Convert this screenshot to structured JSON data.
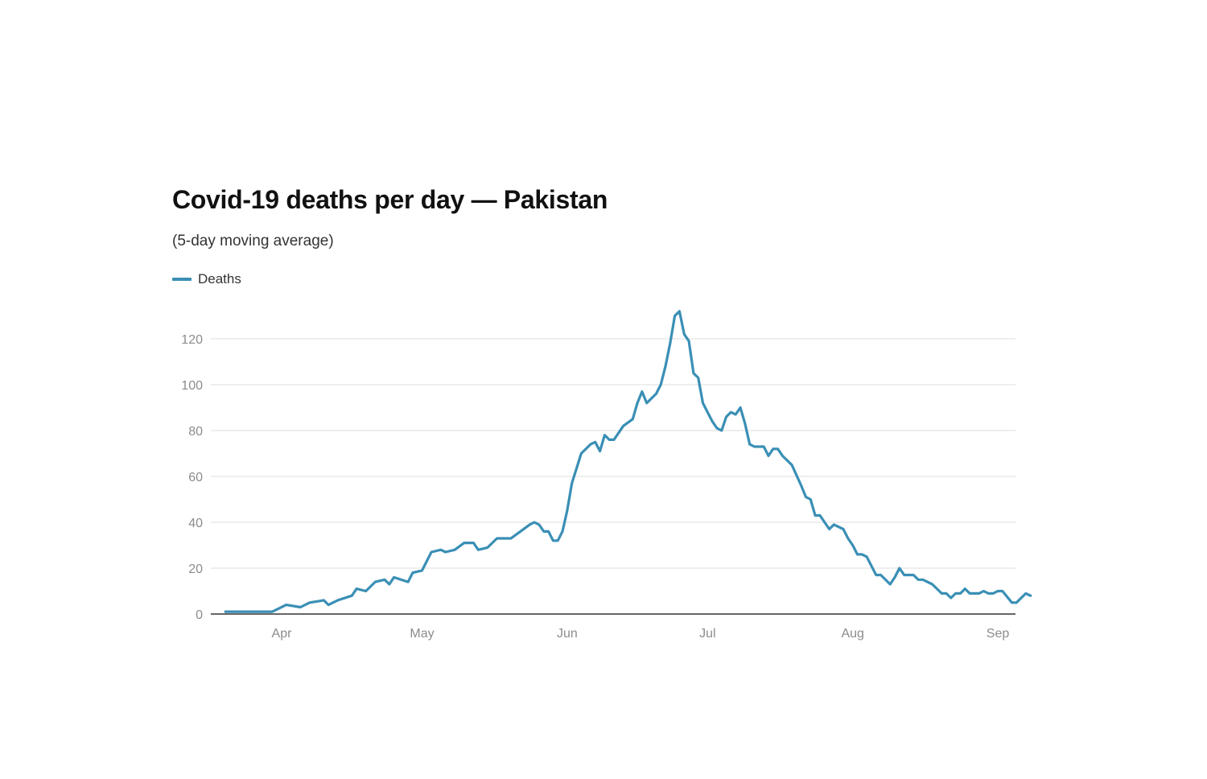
{
  "chart_data": {
    "type": "line",
    "title": "Covid-19 deaths per day — Pakistan",
    "subtitle": "(5-day moving average)",
    "xlabel": "",
    "ylabel": "",
    "ylim": [
      0,
      130
    ],
    "yticks": [
      0,
      20,
      40,
      60,
      80,
      100,
      120
    ],
    "ytick_labels": [
      "0",
      "20",
      "40",
      "60",
      "80",
      "100",
      "120"
    ],
    "x_start_day": -12,
    "x_end_day": 154,
    "x_ticks": [
      {
        "day": 0,
        "label": "Apr"
      },
      {
        "day": 30,
        "label": "May"
      },
      {
        "day": 61,
        "label": "Jun"
      },
      {
        "day": 91,
        "label": "Jul"
      },
      {
        "day": 122,
        "label": "Aug"
      },
      {
        "day": 153,
        "label": "Sep"
      }
    ],
    "grid": true,
    "legend_position": "top-left",
    "colors": {
      "series": "#3a8fb5",
      "grid": "#e8e8e8",
      "axis": "#333333"
    },
    "series": [
      {
        "name": "Deaths",
        "anchors": [
          [
            -12,
            1
          ],
          [
            -2,
            1
          ],
          [
            1,
            4
          ],
          [
            4,
            3
          ],
          [
            6,
            5
          ],
          [
            9,
            6
          ],
          [
            10,
            4
          ],
          [
            12,
            6
          ],
          [
            15,
            8
          ],
          [
            16,
            11
          ],
          [
            18,
            10
          ],
          [
            20,
            14
          ],
          [
            22,
            15
          ],
          [
            23,
            13
          ],
          [
            24,
            16
          ],
          [
            27,
            14
          ],
          [
            28,
            18
          ],
          [
            30,
            19
          ],
          [
            32,
            27
          ],
          [
            34,
            28
          ],
          [
            35,
            27
          ],
          [
            37,
            28
          ],
          [
            39,
            31
          ],
          [
            41,
            31
          ],
          [
            42,
            28
          ],
          [
            44,
            29
          ],
          [
            46,
            33
          ],
          [
            49,
            33
          ],
          [
            51,
            36
          ],
          [
            53,
            39
          ],
          [
            54,
            40
          ],
          [
            55,
            39
          ],
          [
            56,
            36
          ],
          [
            57,
            36
          ],
          [
            58,
            32
          ],
          [
            59,
            32
          ],
          [
            60,
            36
          ],
          [
            61,
            45
          ],
          [
            62,
            57
          ],
          [
            64,
            70
          ],
          [
            66,
            74
          ],
          [
            67,
            75
          ],
          [
            68,
            71
          ],
          [
            69,
            78
          ],
          [
            70,
            76
          ],
          [
            71,
            76
          ],
          [
            73,
            82
          ],
          [
            75,
            85
          ],
          [
            76,
            92
          ],
          [
            77,
            97
          ],
          [
            78,
            92
          ],
          [
            80,
            96
          ],
          [
            81,
            100
          ],
          [
            82,
            108
          ],
          [
            83,
            118
          ],
          [
            84,
            130
          ],
          [
            85,
            132
          ],
          [
            86,
            122
          ],
          [
            87,
            119
          ],
          [
            88,
            105
          ],
          [
            89,
            103
          ],
          [
            90,
            92
          ],
          [
            91,
            88
          ],
          [
            92,
            84
          ],
          [
            93,
            81
          ],
          [
            94,
            80
          ],
          [
            95,
            86
          ],
          [
            96,
            88
          ],
          [
            97,
            87
          ],
          [
            98,
            90
          ],
          [
            99,
            83
          ],
          [
            100,
            74
          ],
          [
            101,
            73
          ],
          [
            103,
            73
          ],
          [
            104,
            69
          ],
          [
            105,
            72
          ],
          [
            106,
            72
          ],
          [
            107,
            69
          ],
          [
            109,
            65
          ],
          [
            111,
            56
          ],
          [
            112,
            51
          ],
          [
            113,
            50
          ],
          [
            114,
            43
          ],
          [
            115,
            43
          ],
          [
            117,
            37
          ],
          [
            118,
            39
          ],
          [
            120,
            37
          ],
          [
            121,
            33
          ],
          [
            122,
            30
          ],
          [
            123,
            26
          ],
          [
            124,
            26
          ],
          [
            125,
            25
          ],
          [
            127,
            17
          ],
          [
            128,
            17
          ],
          [
            130,
            13
          ],
          [
            131,
            16
          ],
          [
            132,
            20
          ],
          [
            133,
            17
          ],
          [
            135,
            17
          ],
          [
            136,
            15
          ],
          [
            137,
            15
          ],
          [
            139,
            13
          ],
          [
            140,
            11
          ],
          [
            141,
            9
          ],
          [
            142,
            9
          ],
          [
            143,
            7
          ],
          [
            144,
            9
          ],
          [
            145,
            9
          ],
          [
            146,
            11
          ],
          [
            147,
            9
          ],
          [
            149,
            9
          ],
          [
            150,
            10
          ],
          [
            151,
            9
          ],
          [
            152,
            9
          ],
          [
            153,
            10
          ],
          [
            154,
            10
          ],
          [
            156,
            5
          ],
          [
            157,
            5
          ],
          [
            158,
            7
          ],
          [
            159,
            9
          ],
          [
            160,
            8
          ]
        ]
      }
    ]
  }
}
